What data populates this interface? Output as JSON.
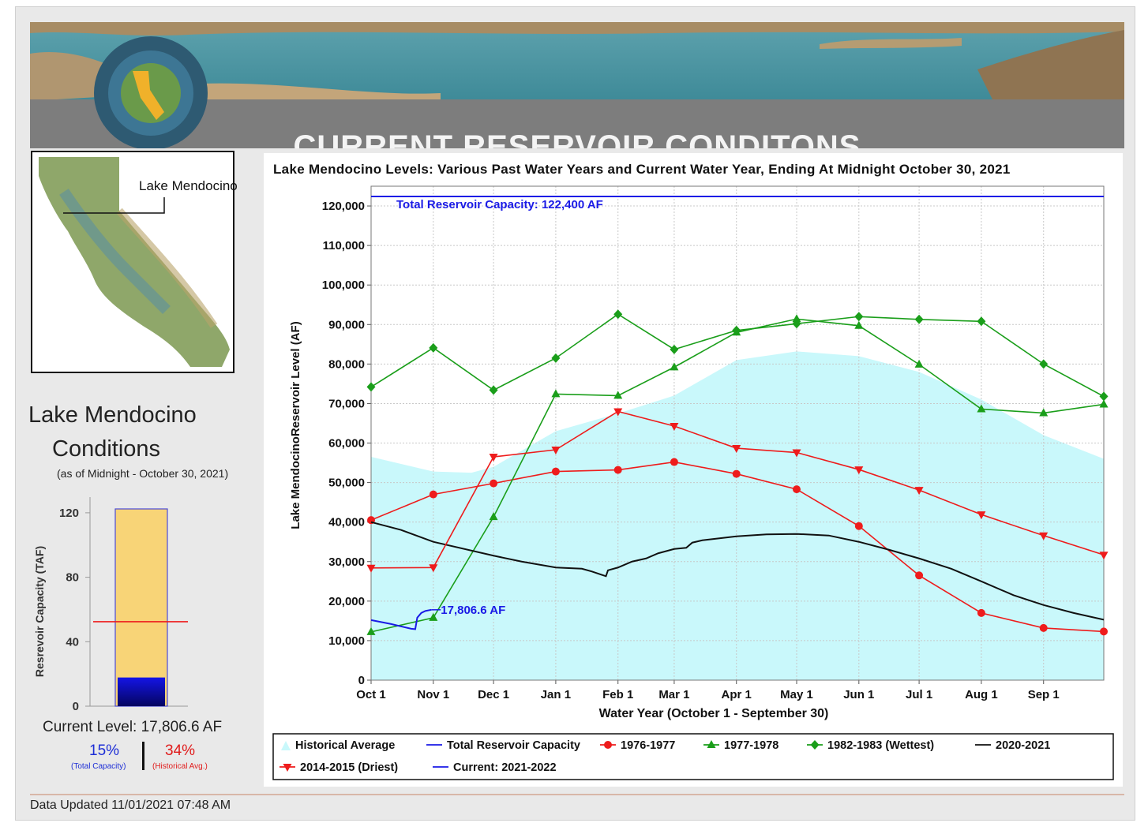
{
  "header": {
    "title": "CURRENT RESERVOIR CONDITONS"
  },
  "map": {
    "label": "Lake Mendocino"
  },
  "conditions": {
    "title_line1": "Lake Mendocino",
    "title_line2": "Conditions",
    "as_of": "(as of Midnight - October 30, 2021)",
    "current_level": "Current Level: 17,806.6 AF",
    "pct_total": "15%",
    "pct_total_label": "(Total Capacity)",
    "pct_hist": "34%",
    "pct_hist_label": "(Historical Avg.)"
  },
  "footer": {
    "updated": "Data Updated 11/01/2021 07:48 AM"
  },
  "colors": {
    "cap": "#1a1ae6",
    "red": "#ee1c1c",
    "green": "#1a9e1a",
    "black": "#111111",
    "hist": "#c9f8fb",
    "gauge_fill": "#f8d477",
    "gauge_level": "#0a0ab0"
  },
  "bar_gauge": {
    "ylabel": "Resrevoir Capacity (TAF)",
    "yticks": [
      0,
      40,
      80,
      120
    ],
    "ylim": [
      0,
      122.4
    ],
    "capacity": 122.4,
    "current": 17.8066,
    "historical_avg": 52.4
  },
  "chart_data": {
    "type": "line",
    "title": "Lake Mendocino Levels: Various Past Water Years and Current Water Year, Ending At Midnight October 30, 2021",
    "xlabel": "Water Year (October 1 - September 30)",
    "ylabel": "Lake MendocinoReservoir Level (AF)",
    "ylim": [
      0,
      125000
    ],
    "yticks": [
      0,
      10000,
      20000,
      30000,
      40000,
      50000,
      60000,
      70000,
      80000,
      90000,
      100000,
      110000,
      120000
    ],
    "ytick_labels": [
      "0",
      "10,000",
      "20,000",
      "30,000",
      "40,000",
      "50,000",
      "60,000",
      "70,000",
      "80,000",
      "90,000",
      "100,000",
      "110,000",
      "120,000"
    ],
    "xlim": [
      0,
      365
    ],
    "xticks": [
      0,
      31,
      61,
      92,
      123,
      151,
      182,
      212,
      243,
      273,
      304,
      335
    ],
    "xtick_labels": [
      "Oct 1",
      "Nov 1",
      "Dec 1",
      "Jan 1",
      "Feb 1",
      "Mar 1",
      "Apr 1",
      "May 1",
      "Jun 1",
      "Jul 1",
      "Aug 1",
      "Sep 1"
    ],
    "capacity": {
      "value": 122400,
      "label": "Total Reservoir Capacity: 122,400 AF"
    },
    "current_annotation": "17,806.6 AF",
    "historical_average": {
      "x": [
        0,
        31,
        50,
        61,
        92,
        123,
        151,
        182,
        212,
        243,
        273,
        304,
        335,
        365
      ],
      "y": [
        56500,
        52800,
        52500,
        54000,
        63000,
        67500,
        72000,
        81000,
        83200,
        82000,
        78000,
        71000,
        62000,
        56000
      ]
    },
    "series": [
      {
        "name": "1976-1977",
        "marker": "circle",
        "color": "#ee1c1c",
        "x": [
          0,
          31,
          61,
          92,
          123,
          151,
          182,
          212,
          243,
          273,
          304,
          335,
          365
        ],
        "y": [
          40500,
          47000,
          49800,
          52800,
          53200,
          55200,
          52200,
          48300,
          39000,
          26500,
          17000,
          13200,
          12300
        ]
      },
      {
        "name": "1977-1978",
        "marker": "triangle-up",
        "color": "#1a9e1a",
        "x": [
          0,
          31,
          61,
          92,
          123,
          151,
          182,
          212,
          243,
          273,
          304,
          335,
          365
        ],
        "y": [
          12200,
          15800,
          41300,
          72400,
          72000,
          79200,
          88000,
          91400,
          89700,
          79900,
          68600,
          67600,
          69800
        ]
      },
      {
        "name": "1982-1983 (Wettest)",
        "marker": "diamond",
        "color": "#1a9e1a",
        "x": [
          0,
          31,
          61,
          92,
          123,
          151,
          182,
          212,
          243,
          273,
          304,
          335,
          365
        ],
        "y": [
          74200,
          84100,
          73400,
          81500,
          92600,
          83700,
          88500,
          90200,
          92000,
          91300,
          90800,
          80000,
          71800
        ]
      },
      {
        "name": "2020-2021",
        "marker": "none",
        "color": "#111111",
        "x": [
          0,
          15,
          31,
          61,
          75,
          92,
          105,
          110,
          117,
          118,
          123,
          130,
          137,
          143,
          151,
          157,
          160,
          165,
          182,
          197,
          212,
          228,
          243,
          258,
          273,
          289,
          304,
          320,
          335,
          350,
          365
        ],
        "y": [
          40000,
          38000,
          35000,
          31500,
          30000,
          28500,
          28200,
          27500,
          26300,
          27800,
          28500,
          30000,
          30800,
          32100,
          33200,
          33500,
          34800,
          35400,
          36400,
          36900,
          37000,
          36600,
          35000,
          33000,
          30800,
          28200,
          25000,
          21500,
          19000,
          17000,
          15300
        ]
      },
      {
        "name": "2014-2015 (Driest)",
        "marker": "triangle-down",
        "color": "#ee1c1c",
        "x": [
          0,
          31,
          61,
          92,
          123,
          151,
          182,
          212,
          243,
          273,
          304,
          335,
          365
        ],
        "y": [
          28400,
          28500,
          56500,
          58300,
          68000,
          64300,
          58700,
          57600,
          53300,
          48100,
          41900,
          36600,
          31700
        ]
      },
      {
        "name": "Current: 2021-2022",
        "marker": "none",
        "color": "#1a1ae6",
        "x": [
          0,
          10,
          20,
          22,
          23,
          25,
          27,
          30
        ],
        "y": [
          15200,
          14200,
          13000,
          12900,
          15800,
          17000,
          17500,
          17806.6
        ]
      }
    ],
    "legend": [
      {
        "label": "Historical Average",
        "kind": "area"
      },
      {
        "label": "Total Reservoir Capacity",
        "kind": "line",
        "color": "#1a1ae6"
      },
      {
        "label": "1976-1977",
        "kind": "circle",
        "color": "#ee1c1c"
      },
      {
        "label": "1977-1978",
        "kind": "triangle-up",
        "color": "#1a9e1a"
      },
      {
        "label": "1982-1983 (Wettest)",
        "kind": "diamond",
        "color": "#1a9e1a"
      },
      {
        "label": "2020-2021",
        "kind": "line",
        "color": "#111111"
      },
      {
        "label": "2014-2015 (Driest)",
        "kind": "triangle-down",
        "color": "#ee1c1c"
      },
      {
        "label": "Current: 2021-2022",
        "kind": "line",
        "color": "#1a1ae6"
      }
    ]
  }
}
